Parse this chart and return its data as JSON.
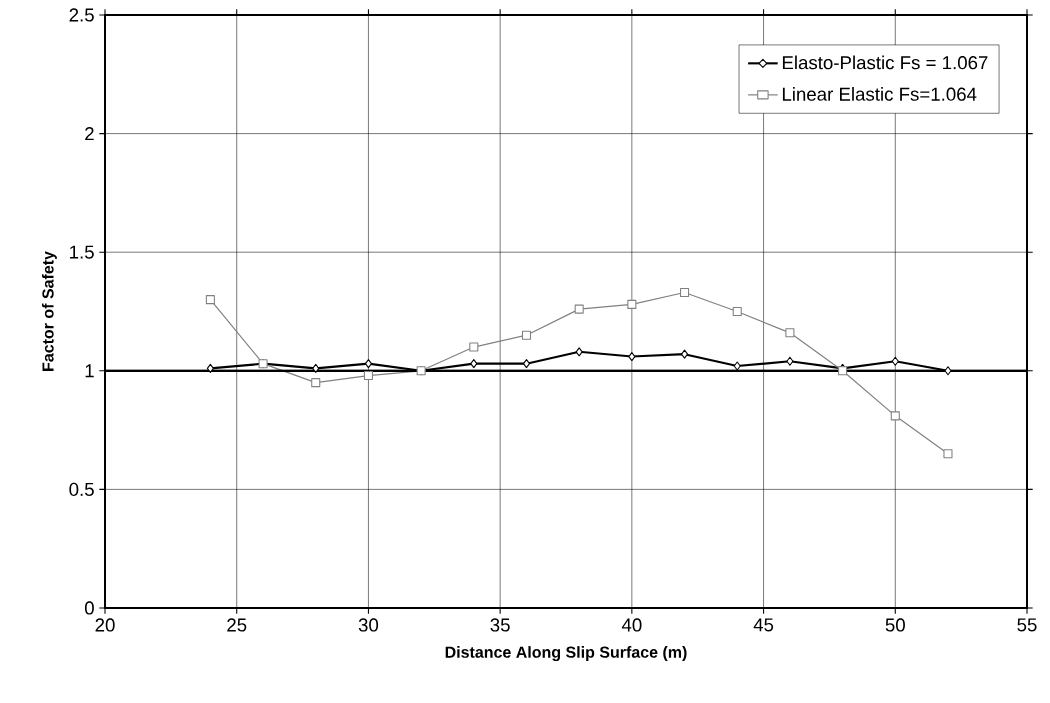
{
  "chart_data": {
    "type": "line",
    "xlabel": "Distance Along Slip Surface (m)",
    "ylabel": "Factor of Safety",
    "x": [
      24,
      26,
      28,
      30,
      32,
      34,
      36,
      38,
      40,
      42,
      44,
      46,
      48,
      50,
      52
    ],
    "series": [
      {
        "name": "Elasto-Plastic Fs = 1.067",
        "color": "#000000",
        "marker": "diamond",
        "values": [
          1.01,
          1.03,
          1.01,
          1.03,
          1.0,
          1.03,
          1.03,
          1.08,
          1.06,
          1.07,
          1.02,
          1.04,
          1.01,
          1.04,
          1.0
        ]
      },
      {
        "name": "Linear Elastic Fs=1.064",
        "color": "#808080",
        "marker": "square",
        "values": [
          1.3,
          1.03,
          0.95,
          0.98,
          1.0,
          1.1,
          1.15,
          1.26,
          1.28,
          1.33,
          1.25,
          1.16,
          1.0,
          0.81,
          0.65
        ]
      }
    ],
    "xlim": [
      20,
      55
    ],
    "xticks": [
      20,
      25,
      30,
      35,
      40,
      45,
      50,
      55
    ],
    "ylim": [
      0,
      2.5
    ],
    "yticks": [
      0,
      0.5,
      1,
      1.5,
      2,
      2.5
    ],
    "ref_lines": [
      {
        "axis": "y",
        "value": 1,
        "color": "#000000"
      }
    ],
    "grid": true,
    "legend": "top right",
    "line_style": "solid"
  }
}
